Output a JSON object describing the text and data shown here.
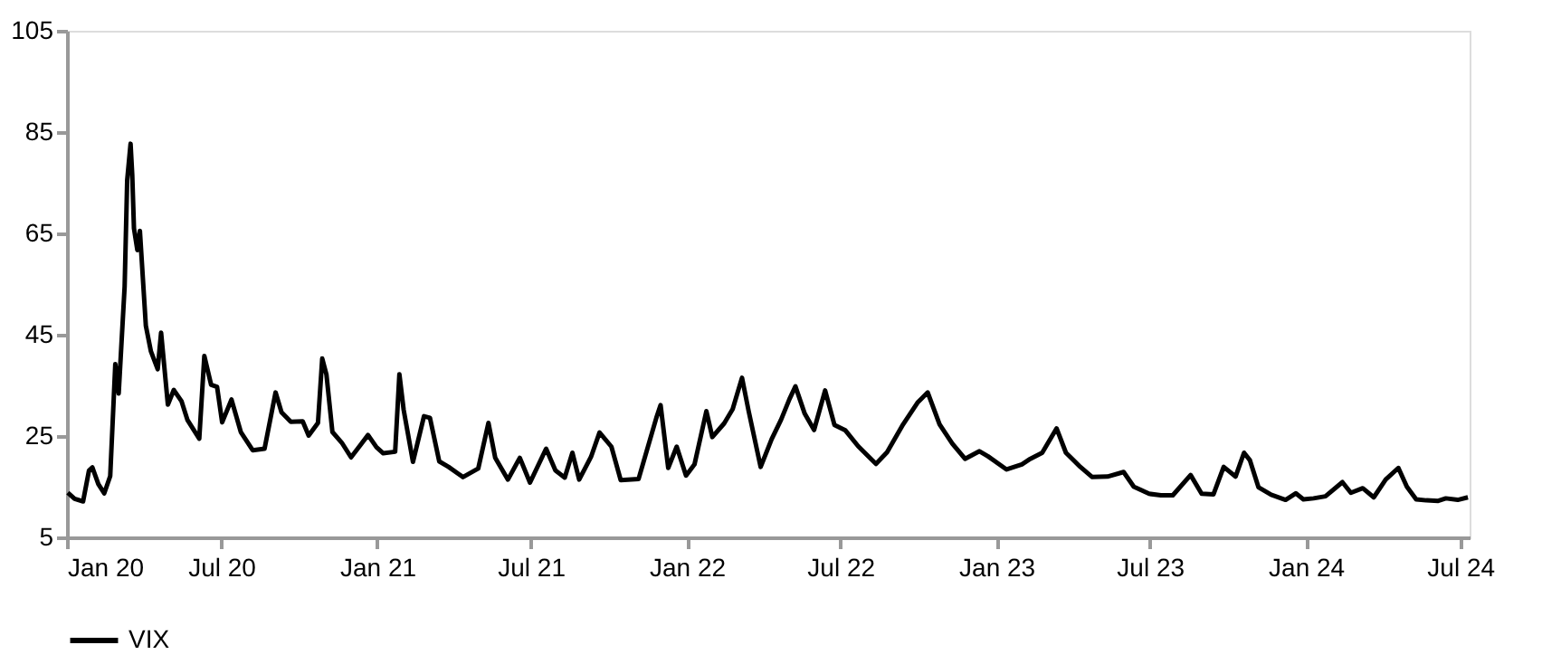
{
  "chart_data": {
    "type": "line",
    "legend": "bottom",
    "grid": false,
    "marker": "none",
    "line_style": "solid",
    "xlim": [
      "2020-01-01",
      "2024-07-12"
    ],
    "xticks": [
      {
        "value": "2020-01-01",
        "label": "Jan 20"
      },
      {
        "value": "2020-07-01",
        "label": "Jul 20"
      },
      {
        "value": "2021-01-01",
        "label": "Jan 21"
      },
      {
        "value": "2021-07-01",
        "label": "Jul 21"
      },
      {
        "value": "2022-01-01",
        "label": "Jan 22"
      },
      {
        "value": "2022-07-01",
        "label": "Jul 22"
      },
      {
        "value": "2023-01-01",
        "label": "Jan 23"
      },
      {
        "value": "2023-07-01",
        "label": "Jul 23"
      },
      {
        "value": "2024-01-01",
        "label": "Jan 24"
      },
      {
        "value": "2024-07-01",
        "label": "Jul 24"
      }
    ],
    "ylim": [
      5,
      105
    ],
    "yticks": [
      5,
      25,
      45,
      65,
      85,
      105
    ],
    "x": [
      "2020-01-02",
      "2020-01-10",
      "2020-01-20",
      "2020-01-27",
      "2020-01-31",
      "2020-02-07",
      "2020-02-14",
      "2020-02-21",
      "2020-02-27",
      "2020-03-02",
      "2020-03-09",
      "2020-03-12",
      "2020-03-16",
      "2020-03-18",
      "2020-03-20",
      "2020-03-24",
      "2020-03-27",
      "2020-04-03",
      "2020-04-09",
      "2020-04-17",
      "2020-04-21",
      "2020-04-29",
      "2020-05-06",
      "2020-05-15",
      "2020-05-22",
      "2020-06-05",
      "2020-06-11",
      "2020-06-19",
      "2020-06-26",
      "2020-07-02",
      "2020-07-13",
      "2020-07-24",
      "2020-08-07",
      "2020-08-21",
      "2020-09-03",
      "2020-09-10",
      "2020-09-21",
      "2020-10-05",
      "2020-10-12",
      "2020-10-23",
      "2020-10-28",
      "2020-11-02",
      "2020-11-09",
      "2020-11-20",
      "2020-12-01",
      "2020-12-11",
      "2020-12-21",
      "2020-12-31",
      "2021-01-08",
      "2021-01-22",
      "2021-01-27",
      "2021-02-01",
      "2021-02-12",
      "2021-02-25",
      "2021-03-04",
      "2021-03-15",
      "2021-03-26",
      "2021-04-12",
      "2021-04-30",
      "2021-05-12",
      "2021-05-20",
      "2021-06-04",
      "2021-06-18",
      "2021-06-30",
      "2021-07-19",
      "2021-07-30",
      "2021-08-10",
      "2021-08-19",
      "2021-08-27",
      "2021-09-10",
      "2021-09-20",
      "2021-10-04",
      "2021-10-15",
      "2021-11-05",
      "2021-11-26",
      "2021-12-01",
      "2021-12-10",
      "2021-12-20",
      "2021-12-31",
      "2022-01-10",
      "2022-01-24",
      "2022-01-31",
      "2022-02-14",
      "2022-02-24",
      "2022-03-07",
      "2022-03-15",
      "2022-03-29",
      "2022-04-11",
      "2022-04-22",
      "2022-05-02",
      "2022-05-09",
      "2022-05-20",
      "2022-05-31",
      "2022-06-13",
      "2022-06-24",
      "2022-07-07",
      "2022-07-22",
      "2022-08-12",
      "2022-08-25",
      "2022-09-13",
      "2022-09-30",
      "2022-10-12",
      "2022-10-26",
      "2022-11-10",
      "2022-11-25",
      "2022-12-12",
      "2022-12-22",
      "2023-01-13",
      "2023-01-31",
      "2023-02-10",
      "2023-02-24",
      "2023-03-13",
      "2023-03-24",
      "2023-04-10",
      "2023-04-24",
      "2023-05-12",
      "2023-05-31",
      "2023-06-12",
      "2023-06-30",
      "2023-07-14",
      "2023-07-28",
      "2023-08-18",
      "2023-08-31",
      "2023-09-14",
      "2023-09-26",
      "2023-10-10",
      "2023-10-20",
      "2023-10-27",
      "2023-11-06",
      "2023-11-21",
      "2023-12-08",
      "2023-12-20",
      "2023-12-29",
      "2024-01-10",
      "2024-01-24",
      "2024-02-13",
      "2024-02-23",
      "2024-03-08",
      "2024-03-21",
      "2024-04-04",
      "2024-04-19",
      "2024-04-29",
      "2024-05-10",
      "2024-05-22",
      "2024-06-05",
      "2024-06-14",
      "2024-06-28",
      "2024-07-10"
    ],
    "series": [
      {
        "name": "VIX",
        "color": "#000000",
        "values": [
          13.8,
          12.6,
          12.1,
          18.2,
          18.8,
          15.5,
          13.7,
          17.1,
          39.2,
          33.4,
          54.5,
          75.5,
          82.7,
          76.5,
          66.0,
          61.7,
          65.5,
          46.8,
          41.7,
          38.2,
          45.4,
          31.2,
          34.1,
          31.9,
          28.2,
          24.5,
          40.8,
          35.1,
          34.7,
          27.7,
          32.2,
          25.8,
          22.2,
          22.5,
          33.6,
          29.7,
          27.8,
          27.9,
          25.1,
          27.6,
          40.3,
          37.1,
          25.8,
          23.7,
          20.8,
          23.0,
          25.2,
          22.8,
          21.6,
          21.9,
          37.2,
          30.2,
          19.9,
          28.9,
          28.6,
          20.0,
          18.9,
          16.9,
          18.6,
          27.6,
          20.7,
          16.4,
          20.7,
          15.8,
          22.5,
          18.2,
          16.8,
          21.7,
          16.4,
          20.9,
          25.7,
          22.9,
          16.3,
          16.5,
          28.6,
          31.1,
          18.7,
          22.9,
          17.2,
          19.4,
          29.9,
          24.8,
          27.5,
          30.3,
          36.5,
          29.8,
          18.9,
          24.4,
          28.2,
          32.3,
          34.8,
          29.4,
          26.2,
          34.0,
          27.2,
          26.1,
          23.0,
          19.5,
          21.8,
          27.3,
          31.6,
          33.6,
          27.3,
          23.5,
          20.5,
          22.0,
          21.0,
          18.4,
          19.4,
          20.5,
          21.7,
          26.5,
          21.7,
          18.9,
          16.9,
          17.0,
          17.9,
          15.0,
          13.6,
          13.3,
          13.3,
          17.3,
          13.6,
          13.5,
          18.9,
          17.0,
          21.7,
          20.2,
          14.9,
          13.4,
          12.4,
          13.7,
          12.5,
          12.7,
          13.1,
          15.9,
          13.8,
          14.7,
          12.9,
          16.4,
          18.7,
          15.0,
          12.5,
          12.3,
          12.2,
          12.7,
          12.4,
          12.9
        ]
      }
    ]
  }
}
